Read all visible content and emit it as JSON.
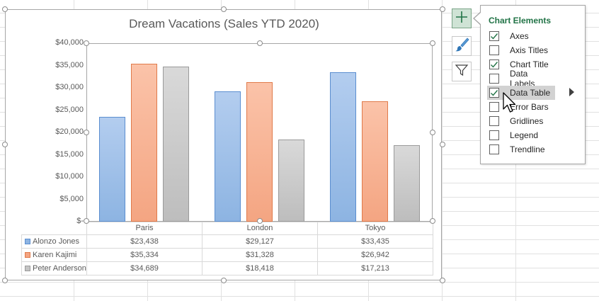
{
  "chart_data": {
    "type": "bar",
    "title": "Dream Vacations (Sales YTD 2020)",
    "categories": [
      "Paris",
      "London",
      "Tokyo"
    ],
    "series": [
      {
        "name": "Alonzo Jones",
        "values": [
          23438,
          29127,
          33435
        ]
      },
      {
        "name": "Karen Kajimi",
        "values": [
          35334,
          31328,
          26942
        ]
      },
      {
        "name": "Peter Anderson",
        "values": [
          34689,
          18418,
          17213
        ]
      }
    ],
    "ylim": [
      0,
      40000
    ],
    "y_ticks": [
      "$40,000",
      "$35,000",
      "$30,000",
      "$25,000",
      "$20,000",
      "$15,000",
      "$10,000",
      "$5,000",
      "$-"
    ],
    "data_table": [
      [
        "$23,438",
        "$29,127",
        "$33,435"
      ],
      [
        "$35,334",
        "$31,328",
        "$26,942"
      ],
      [
        "$34,689",
        "$18,418",
        "$17,213"
      ]
    ],
    "grid": false,
    "legend": "data table",
    "colors": {
      "series": [
        "#8db4e2",
        "#f4a582",
        "#c4c4c4"
      ],
      "series_border": [
        "#5b8ed0",
        "#e07a4a",
        "#9a9a9a"
      ]
    }
  },
  "side_buttons": [
    {
      "icon": "plus-icon",
      "active": true
    },
    {
      "icon": "brush-icon",
      "active": false
    },
    {
      "icon": "filter-icon",
      "active": false
    }
  ],
  "chart_elements": {
    "title": "Chart Elements",
    "options": [
      {
        "label": "Axes",
        "checked": true
      },
      {
        "label": "Axis Titles",
        "checked": false
      },
      {
        "label": "Chart Title",
        "checked": true
      },
      {
        "label": "Data Labels",
        "checked": false
      },
      {
        "label": "Data Table",
        "checked": true,
        "hover": true
      },
      {
        "label": "Error Bars",
        "checked": false
      },
      {
        "label": "Gridlines",
        "checked": false
      },
      {
        "label": "Legend",
        "checked": false
      },
      {
        "label": "Trendline",
        "checked": false
      }
    ]
  }
}
